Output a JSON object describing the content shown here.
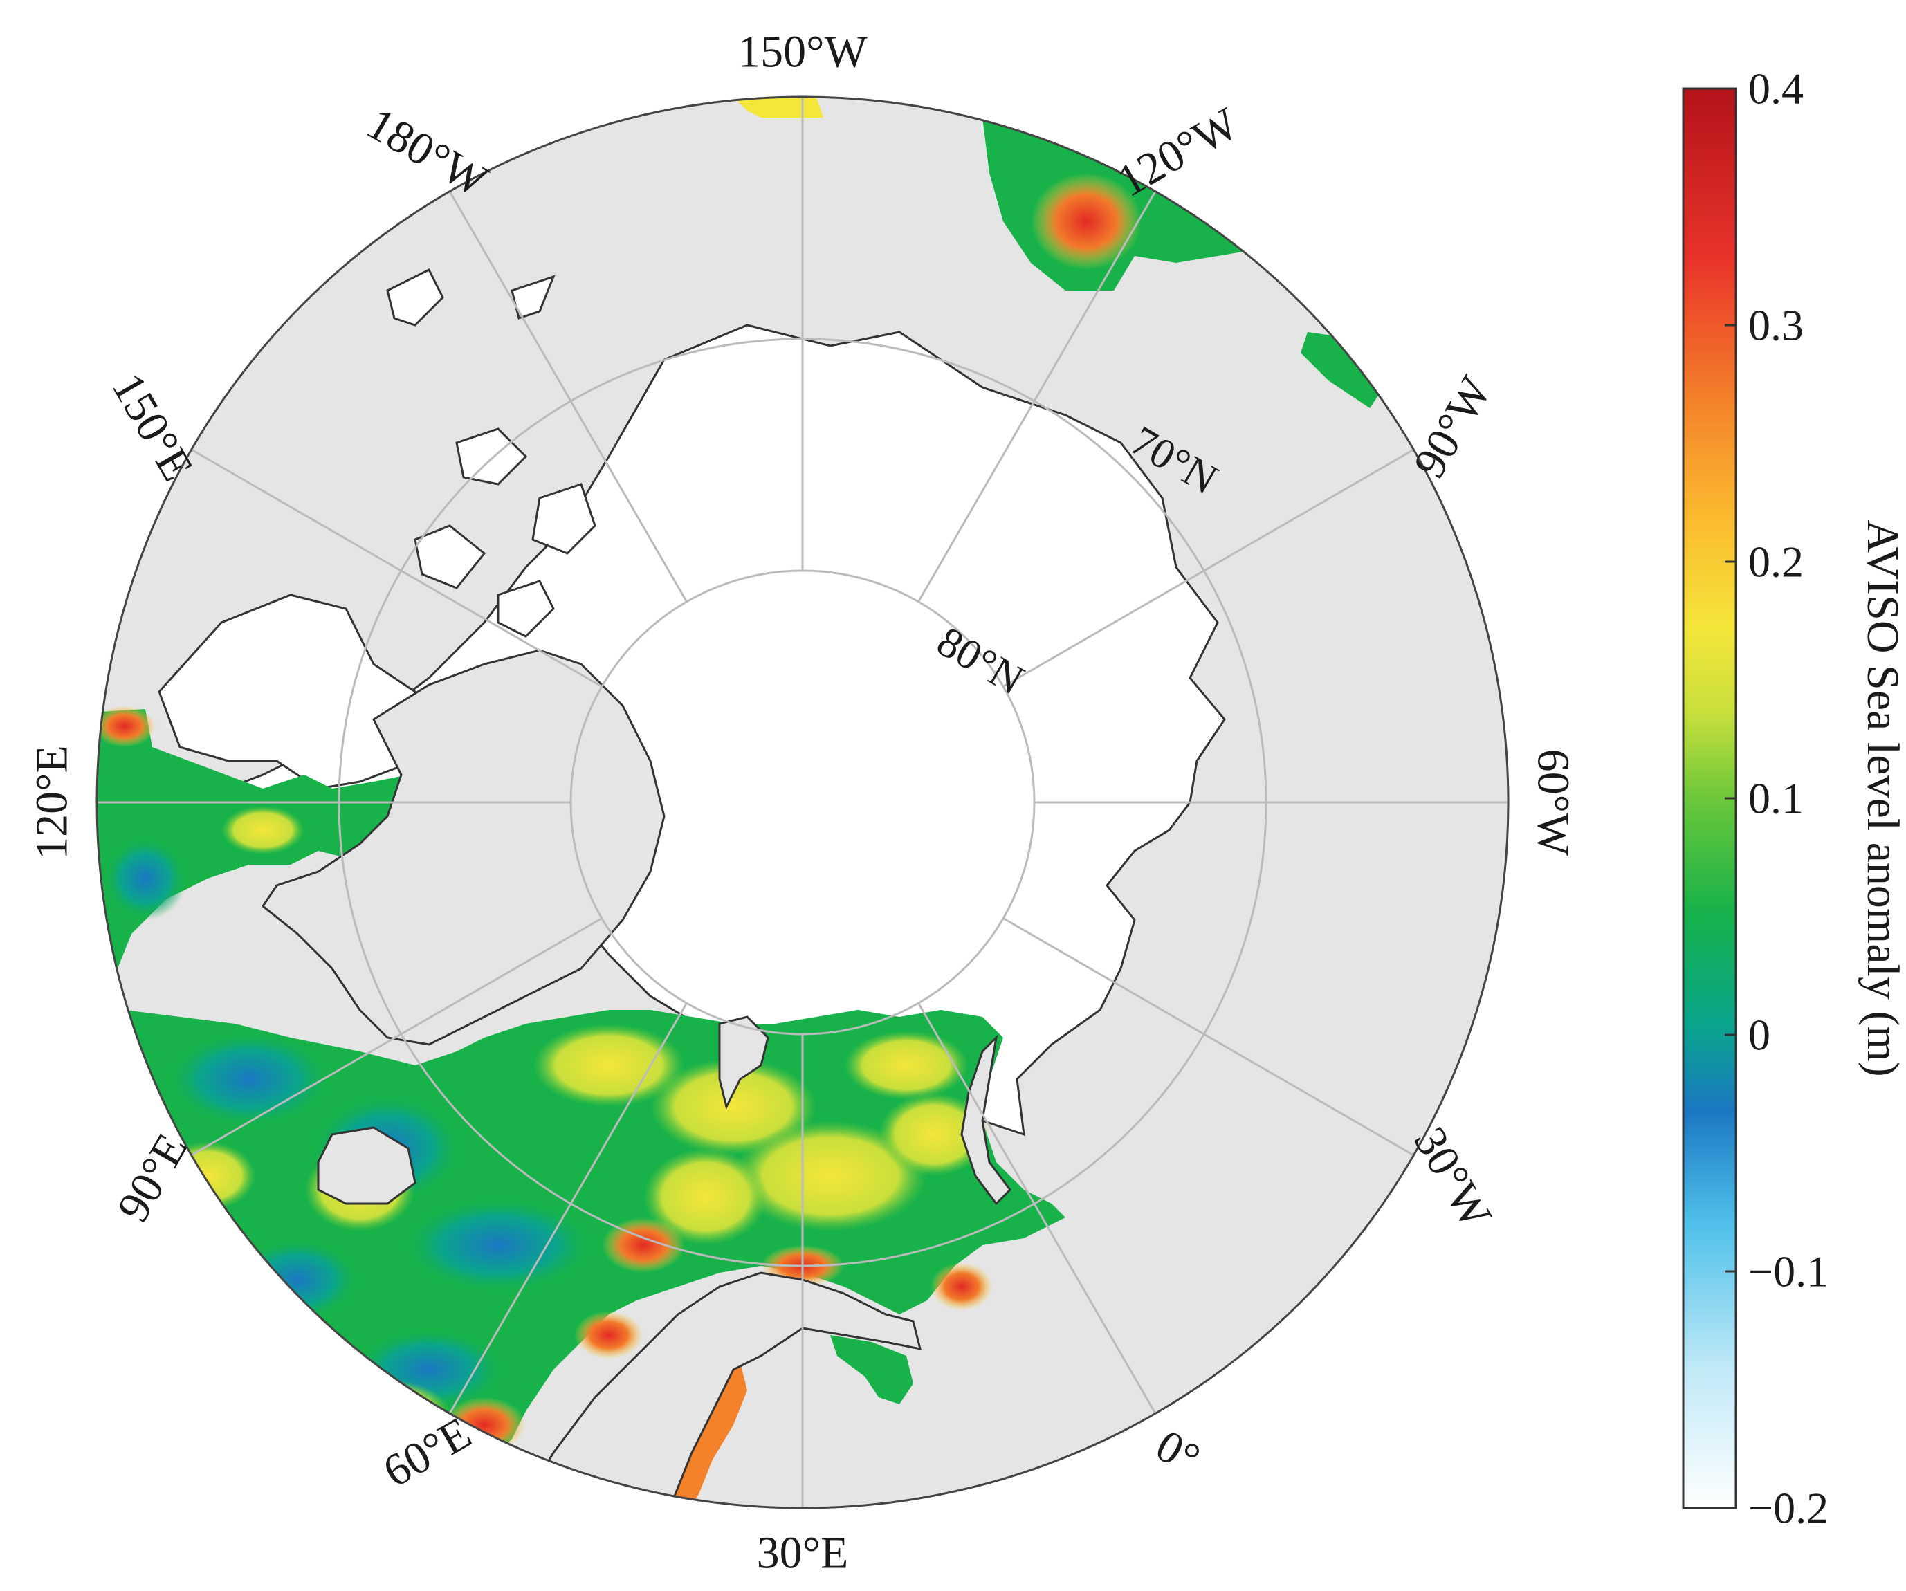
{
  "map": {
    "projection": "north-polar-stereographic",
    "lat_rings": [
      {
        "lat": 70,
        "label": "70°N"
      },
      {
        "lat": 80,
        "label": "80°N"
      }
    ],
    "meridians": [
      {
        "lon": -150,
        "label": "150°W"
      },
      {
        "lon": -120,
        "label": "120°W"
      },
      {
        "lon": -90,
        "label": "90°W"
      },
      {
        "lon": -60,
        "label": "60°W"
      },
      {
        "lon": -30,
        "label": "30°W"
      },
      {
        "lon": 0,
        "label": "0°"
      },
      {
        "lon": 30,
        "label": "30°E"
      },
      {
        "lon": 60,
        "label": "60°E"
      },
      {
        "lon": 90,
        "label": "90°E"
      },
      {
        "lon": 120,
        "label": "120°E"
      },
      {
        "lon": 150,
        "label": "150°E"
      },
      {
        "lon": 180,
        "label": "180°W"
      }
    ],
    "colors": {
      "land": "#e5e5e5",
      "ice_ocean": "#ffffff",
      "coast": "#333333",
      "grid": "#bbbbbb"
    }
  },
  "colorbar": {
    "label": "AVISO Sea level anomaly (m)",
    "min": -0.2,
    "max": 0.4,
    "ticks": [
      "0.4",
      "0.3",
      "0.2",
      "0.1",
      "0",
      "−0.1",
      "−0.2"
    ],
    "tick_values": [
      0.4,
      0.3,
      0.2,
      0.1,
      0,
      -0.1,
      -0.2
    ],
    "colormap": [
      "#ffffff",
      "#bfe9f7",
      "#4fc1ea",
      "#1a78c2",
      "#0aa58c",
      "#17b24a",
      "#6cc83a",
      "#c8df3c",
      "#f5e63a",
      "#fbb92f",
      "#f4822a",
      "#e9332a",
      "#b3131a"
    ]
  }
}
